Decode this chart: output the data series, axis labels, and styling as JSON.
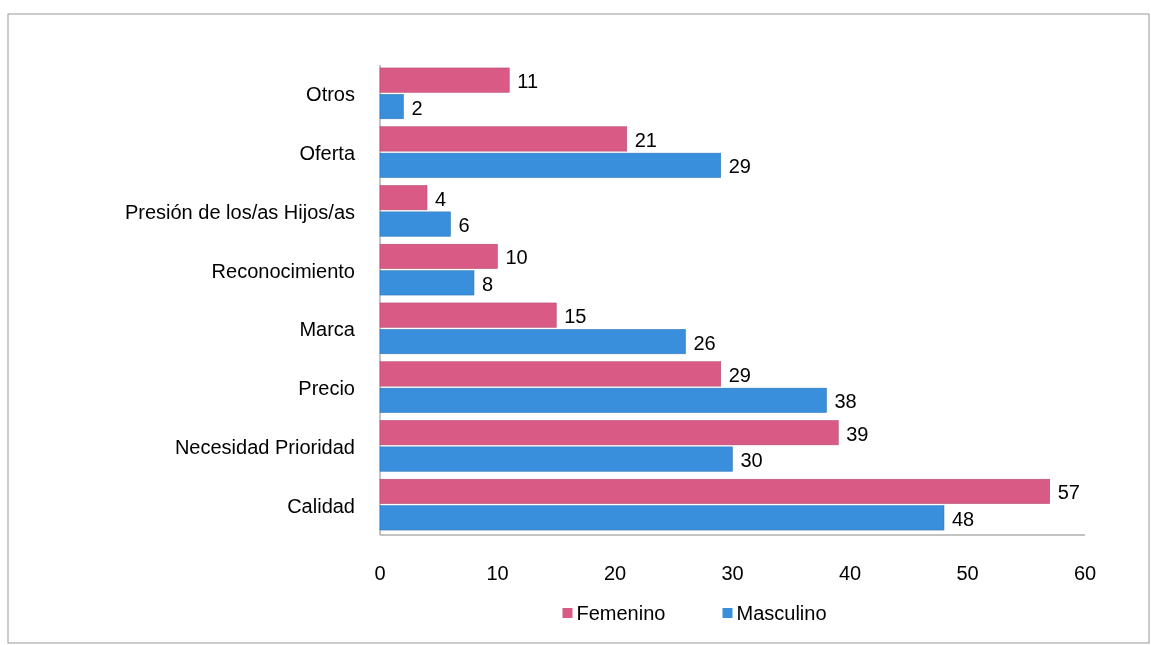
{
  "chart_data": {
    "type": "bar",
    "orientation": "horizontal",
    "categories": [
      "Otros",
      "Oferta",
      "Presión de los/as Hijos/as",
      "Reconocimiento",
      "Marca",
      "Precio",
      "Necesidad Prioridad",
      "Calidad"
    ],
    "series": [
      {
        "name": "Femenino",
        "color": "#d95a84",
        "values": [
          11,
          21,
          4,
          10,
          15,
          29,
          39,
          57
        ]
      },
      {
        "name": "Masculino",
        "color": "#3a8fdc",
        "values": [
          2,
          29,
          6,
          8,
          26,
          38,
          30,
          48
        ]
      }
    ],
    "xlim": [
      0,
      60
    ],
    "xticks": [
      0,
      10,
      20,
      30,
      40,
      50,
      60
    ],
    "data_labels": true,
    "legend": "bottom",
    "grid": false
  }
}
